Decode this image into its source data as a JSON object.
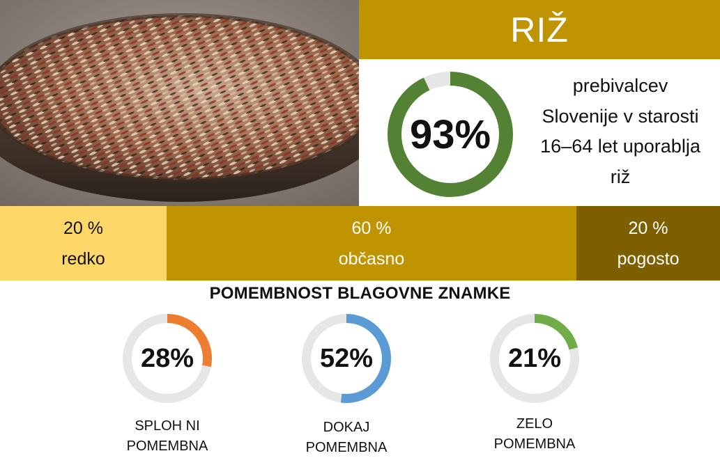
{
  "title": "RIŽ",
  "hero": {
    "percent_label": "93%",
    "value": 93,
    "line1": "prebivalcev",
    "line2": "Slovenije v starosti",
    "line3": "16–64 let uporablja",
    "line4": "riž"
  },
  "frequency": [
    {
      "pct": "20 %",
      "label": "redko"
    },
    {
      "pct": "60 %",
      "label": "občasno"
    },
    {
      "pct": "20 %",
      "label": "pogosto"
    }
  ],
  "brand_section": {
    "title": "POMEMBNOST BLAGOVNE ZNAMKE",
    "items": [
      {
        "percent_label": "28%",
        "value": 28,
        "line1": "SPLOH NI",
        "line2": "POMEMBNA",
        "color": "#ed7d31"
      },
      {
        "percent_label": "52%",
        "value": 52,
        "line1": "DOKAJ",
        "line2": "POMEMBNA",
        "color": "#5b9bd5"
      },
      {
        "percent_label": "21%",
        "value": 21,
        "line1": "ZELO",
        "line2": "POMEMBNA",
        "color": "#70ad47"
      }
    ]
  },
  "colors": {
    "accent_gold": "#c09400",
    "light_gold": "#fdd868",
    "dark_gold": "#7e5f00",
    "hero_ring": "#548235",
    "ring_track": "#e6e6e6"
  },
  "image": "bowl-of-mixed-rice-photo"
}
